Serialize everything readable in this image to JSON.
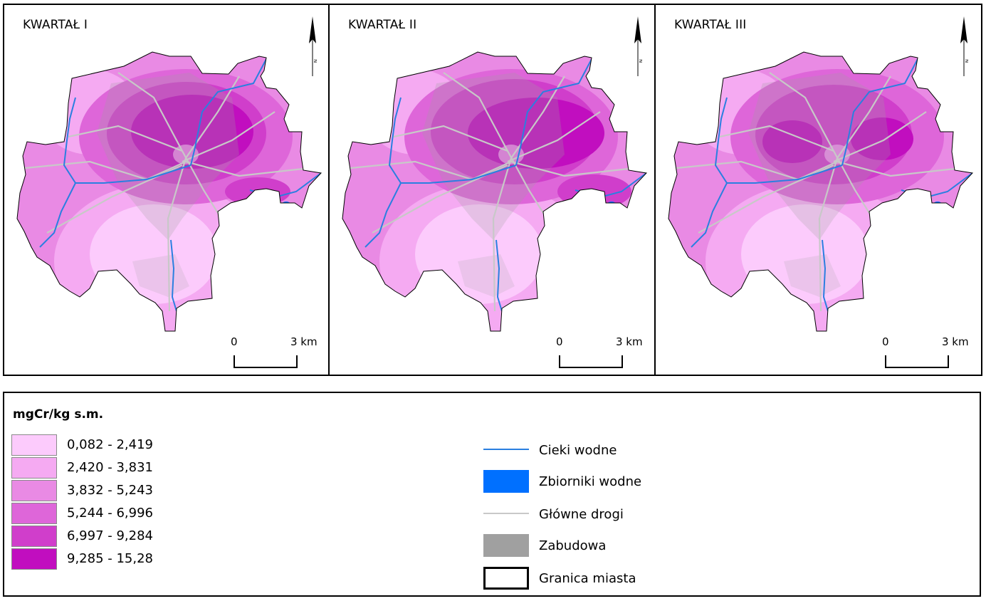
{
  "panels": [
    {
      "title": "KWARTAŁ I",
      "north_label": "N",
      "scale": {
        "start": "0",
        "end": "3 km"
      }
    },
    {
      "title": "KWARTAŁ II",
      "north_label": "N",
      "scale": {
        "start": "0",
        "end": "3 km"
      }
    },
    {
      "title": "KWARTAŁ III",
      "north_label": "N",
      "scale": {
        "start": "0",
        "end": "3 km"
      }
    }
  ],
  "legend": {
    "title": "mgCr/kg s.m.",
    "classes": [
      {
        "label": "0,082 - 2,419",
        "color": "#fccbfc"
      },
      {
        "label": "2,420 - 3,831",
        "color": "#f5aaf2"
      },
      {
        "label": "3,832 - 5,243",
        "color": "#e98ae4"
      },
      {
        "label": "5,244 - 6,996",
        "color": "#de66d9"
      },
      {
        "label": "6,997 - 9,284",
        "color": "#d03ecb"
      },
      {
        "label": "9,285 - 15,28",
        "color": "#c10ebf"
      }
    ],
    "symbols": [
      {
        "label": "Cieki wodne",
        "type": "line",
        "color": "#2a7fe0"
      },
      {
        "label": "Zbiorniki wodne",
        "type": "fill",
        "color": "#0070ff"
      },
      {
        "label": "Główne drogi",
        "type": "line",
        "color": "#c8c8c8"
      },
      {
        "label": "Zabudowa",
        "type": "fill",
        "color": "#a0a0a0"
      },
      {
        "label": "Granica miasta",
        "type": "outline",
        "color": "#000000"
      }
    ]
  },
  "map_colors": {
    "class_0": "#fccbfc",
    "class_1": "#f5aaf2",
    "class_2": "#e98ae4",
    "class_3": "#de66d9",
    "class_4": "#d03ecb",
    "class_5": "#c10ebf",
    "river": "#2a7fe0",
    "road": "#c8c8c8",
    "buildings": "#a0a0a0",
    "boundary": "#000000"
  }
}
